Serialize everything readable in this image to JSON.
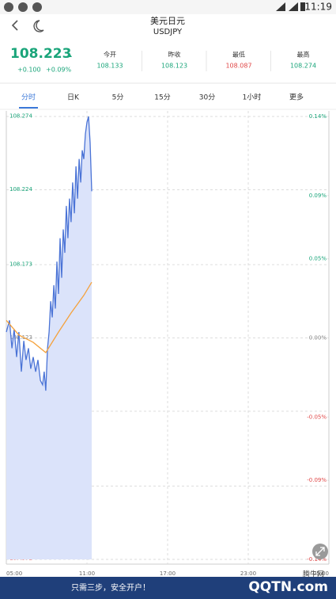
{
  "status_bar": {
    "time": "11:19"
  },
  "header": {
    "title": "美元日元",
    "subtitle": "USDJPY"
  },
  "quote": {
    "price": "108.223",
    "change": "+0.100",
    "change_pct": "+0.09%",
    "stats": [
      {
        "label": "今开",
        "value": "108.133"
      },
      {
        "label": "昨收",
        "value": "108.123"
      },
      {
        "label": "最低",
        "value": "108.087"
      },
      {
        "label": "最高",
        "value": "108.274"
      }
    ]
  },
  "tabs": [
    "分时",
    "日K",
    "5分",
    "15分",
    "30分",
    "1小时",
    "更多"
  ],
  "chart_data": {
    "type": "line",
    "series": [
      {
        "name": "price",
        "color": "#4a73d6",
        "x": [
          0,
          14,
          25,
          35,
          46,
          56,
          67,
          78,
          88,
          99,
          109,
          120,
          131,
          141,
          152,
          162,
          169,
          176,
          184,
          191,
          198,
          205,
          212,
          219,
          226,
          233,
          240,
          247,
          254,
          261,
          268,
          275,
          282,
          289,
          296,
          304,
          311,
          318,
          325,
          332,
          339,
          346,
          353,
          360,
          367,
          374,
          381
        ],
        "values": [
          108.127,
          108.135,
          108.116,
          108.129,
          108.11,
          108.127,
          108.1,
          108.121,
          108.108,
          108.116,
          108.102,
          108.11,
          108.1,
          108.108,
          108.094,
          108.091,
          108.1,
          108.087,
          108.116,
          108.127,
          108.148,
          108.137,
          108.159,
          108.143,
          108.175,
          108.153,
          108.191,
          108.164,
          108.197,
          108.181,
          108.213,
          108.191,
          108.218,
          108.202,
          108.229,
          108.208,
          108.24,
          108.218,
          108.245,
          108.229,
          108.251,
          108.245,
          108.262,
          108.27,
          108.274,
          108.256,
          108.223
        ]
      },
      {
        "name": "average",
        "color": "#f5a23c",
        "x": [
          0,
          56,
          120,
          176,
          233,
          289,
          346,
          381
        ],
        "values": [
          108.135,
          108.125,
          108.12,
          108.113,
          108.127,
          108.14,
          108.152,
          108.161
        ]
      }
    ],
    "xlim": [
      0,
      1440
    ],
    "xticks": [
      {
        "value": 0,
        "label": "05:00"
      },
      {
        "value": 360,
        "label": "11:00"
      },
      {
        "value": 720,
        "label": "17:00"
      },
      {
        "value": 1080,
        "label": "23:00"
      },
      {
        "value": 1440,
        "label": "05:00"
      }
    ],
    "ylim": [
      107.972,
      108.274
    ],
    "yticks": [
      108.274,
      108.224,
      108.173,
      108.123,
      108.073,
      108.022,
      107.972
    ],
    "y2lim": [
      -0.14,
      0.14
    ],
    "y2ticks": [
      {
        "value": 0.14,
        "label": "0.14%"
      },
      {
        "value": 0.09,
        "label": "0.09%"
      },
      {
        "value": 0.05,
        "label": "0.05%"
      },
      {
        "value": 0,
        "label": "0.00%"
      },
      {
        "value": -0.05,
        "label": "-0.05%"
      },
      {
        "value": -0.09,
        "label": "-0.09%"
      },
      {
        "value": -0.14,
        "label": "-0.14%"
      }
    ],
    "grid": true
  },
  "banner": {
    "text": "只需三步，安全开户！",
    "watermark": "QQTN.com",
    "site": "腾牛网"
  }
}
